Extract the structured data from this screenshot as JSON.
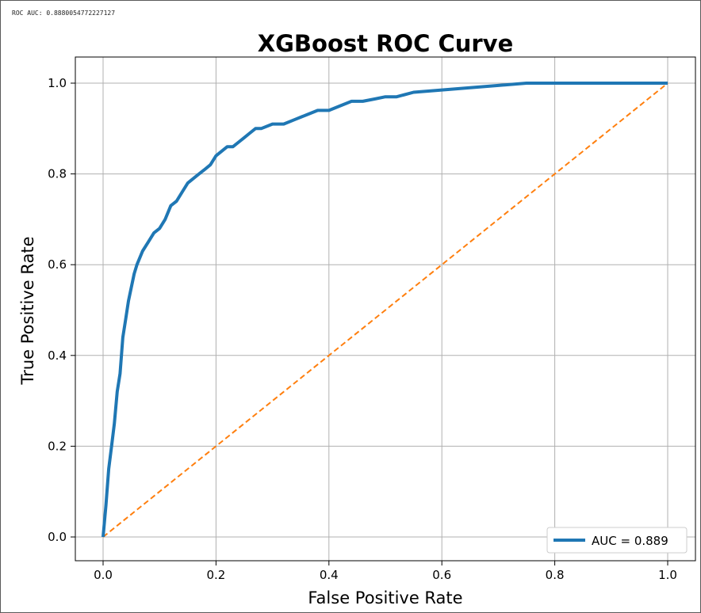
{
  "console_output": "ROC AUC: 0.8880054772227127",
  "chart_data": {
    "type": "line",
    "title": "XGBoost ROC Curve",
    "xlabel": "False Positive Rate",
    "ylabel": "True Positive Rate",
    "xlim": [
      0.0,
      1.0
    ],
    "ylim": [
      0.0,
      1.0
    ],
    "xticks": [
      "0.0",
      "0.2",
      "0.4",
      "0.6",
      "0.8",
      "1.0"
    ],
    "yticks": [
      "0.0",
      "0.2",
      "0.4",
      "0.6",
      "0.8",
      "1.0"
    ],
    "grid": true,
    "legend_position": "lower-right",
    "series": [
      {
        "name": "AUC = 0.889",
        "color": "#1f77b4",
        "style": "solid",
        "x": [
          0.0,
          0.005,
          0.01,
          0.015,
          0.02,
          0.025,
          0.03,
          0.035,
          0.04,
          0.045,
          0.05,
          0.055,
          0.06,
          0.07,
          0.08,
          0.09,
          0.1,
          0.11,
          0.12,
          0.13,
          0.14,
          0.15,
          0.16,
          0.17,
          0.18,
          0.19,
          0.2,
          0.21,
          0.22,
          0.23,
          0.24,
          0.25,
          0.26,
          0.27,
          0.28,
          0.3,
          0.32,
          0.34,
          0.36,
          0.38,
          0.4,
          0.42,
          0.44,
          0.46,
          0.48,
          0.5,
          0.52,
          0.55,
          0.6,
          0.65,
          0.7,
          0.75,
          0.8,
          0.9,
          1.0
        ],
        "y": [
          0.0,
          0.07,
          0.15,
          0.2,
          0.25,
          0.32,
          0.36,
          0.44,
          0.48,
          0.52,
          0.55,
          0.58,
          0.6,
          0.63,
          0.65,
          0.67,
          0.68,
          0.7,
          0.73,
          0.74,
          0.76,
          0.78,
          0.79,
          0.8,
          0.81,
          0.82,
          0.84,
          0.85,
          0.86,
          0.86,
          0.87,
          0.88,
          0.89,
          0.9,
          0.9,
          0.91,
          0.91,
          0.92,
          0.93,
          0.94,
          0.94,
          0.95,
          0.96,
          0.96,
          0.965,
          0.97,
          0.97,
          0.98,
          0.985,
          0.99,
          0.995,
          1.0,
          1.0,
          1.0,
          1.0
        ]
      },
      {
        "color": "#ff7f0e",
        "style": "dashed",
        "x": [
          0.0,
          1.0
        ],
        "y": [
          0.0,
          1.0
        ]
      }
    ]
  }
}
